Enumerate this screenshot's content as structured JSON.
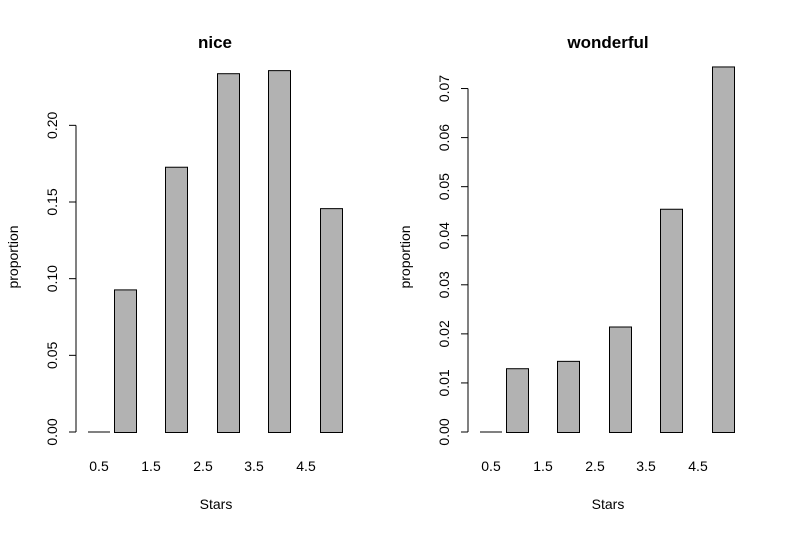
{
  "chart_data": [
    {
      "type": "bar",
      "title": "nice",
      "xlabel": "Stars",
      "ylabel": "proportion",
      "x_tick_labels": [
        "0.5",
        "1.5",
        "2.5",
        "3.5",
        "4.5"
      ],
      "y_tick_labels": [
        "0.00",
        "0.05",
        "0.10",
        "0.15",
        "0.20"
      ],
      "y_ticks": [
        0,
        0.05,
        0.1,
        0.15,
        0.2
      ],
      "ylim": [
        0,
        0.24
      ],
      "categories": [
        "0.5",
        "1",
        "2",
        "3",
        "4",
        "5"
      ],
      "values": [
        0.0,
        0.093,
        0.173,
        0.234,
        0.236,
        0.146
      ],
      "grid": false,
      "bar_color": "#b2b2b2"
    },
    {
      "type": "bar",
      "title": "wonderful",
      "xlabel": "Stars",
      "ylabel": "proportion",
      "x_tick_labels": [
        "0.5",
        "1.5",
        "2.5",
        "3.5",
        "4.5"
      ],
      "y_tick_labels": [
        "0.00",
        "0.01",
        "0.02",
        "0.03",
        "0.04",
        "0.05",
        "0.06",
        "0.07"
      ],
      "y_ticks": [
        0,
        0.01,
        0.02,
        0.03,
        0.04,
        0.05,
        0.06,
        0.07
      ],
      "ylim": [
        0,
        0.075
      ],
      "categories": [
        "0.5",
        "1",
        "2",
        "3",
        "4",
        "5"
      ],
      "values": [
        0.0,
        0.013,
        0.0145,
        0.0215,
        0.0455,
        0.0745
      ],
      "grid": false,
      "bar_color": "#b2b2b2"
    }
  ]
}
